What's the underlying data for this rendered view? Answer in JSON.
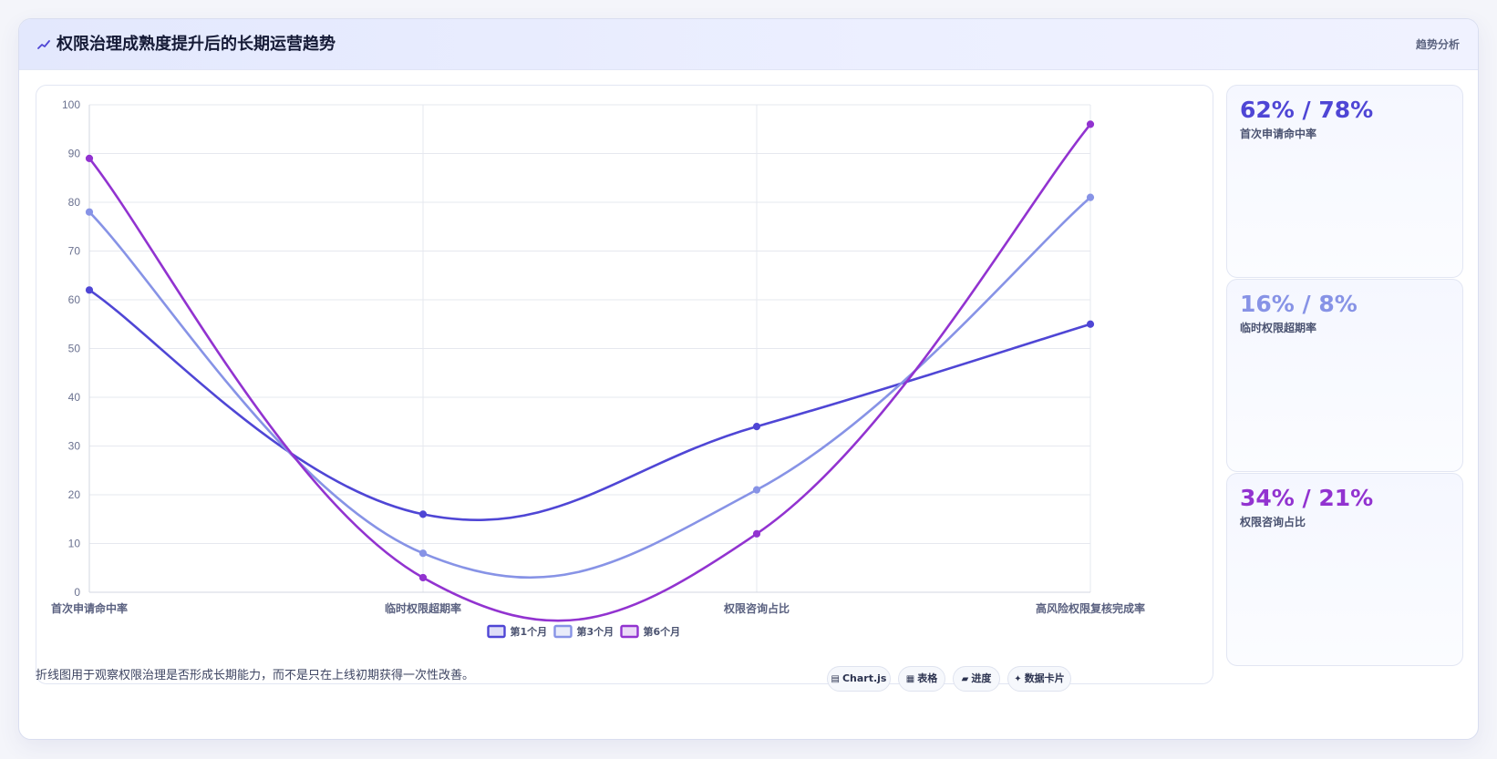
{
  "header": {
    "title": "权限治理成熟度提升后的长期运营趋势",
    "tag": "趋势分析"
  },
  "chart_data": {
    "type": "line",
    "title": "",
    "xlabel": "",
    "ylabel": "",
    "categories": [
      "首次申请命中率",
      "临时权限超期率",
      "权限咨询占比",
      "高风险权限复核完成率"
    ],
    "series": [
      {
        "name": "第1个月",
        "values": [
          62,
          16,
          34,
          55
        ],
        "color": "#4f46d5"
      },
      {
        "name": "第3个月",
        "values": [
          78,
          8,
          21,
          81
        ],
        "color": "#8793e6"
      },
      {
        "name": "第6个月",
        "values": [
          89,
          3,
          12,
          96
        ],
        "color": "#9233d0"
      }
    ],
    "ylim": [
      0,
      100
    ],
    "yticks": [
      0,
      10,
      20,
      30,
      40,
      50,
      60,
      70,
      80,
      90,
      100
    ],
    "grid": true,
    "legend": "bottom",
    "smooth": true
  },
  "stats": [
    {
      "value": "62% / 78%",
      "label": "首次申请命中率",
      "color": "#4f46d5"
    },
    {
      "value": "16% / 8%",
      "label": "临时权限超期率",
      "color": "#8793e6"
    },
    {
      "value": "34% / 21%",
      "label": "权限咨询占比",
      "color": "#9233d0"
    }
  ],
  "footer": {
    "note": "折线图用于观察权限治理是否形成长期能力，而不是只在上线初期获得一次性改善。",
    "chips": [
      {
        "glyph": "▤",
        "label": "Chart.js"
      },
      {
        "glyph": "▦",
        "label": "表格"
      },
      {
        "glyph": "▰",
        "label": "进度"
      },
      {
        "glyph": "✦",
        "label": "数据卡片"
      }
    ]
  }
}
